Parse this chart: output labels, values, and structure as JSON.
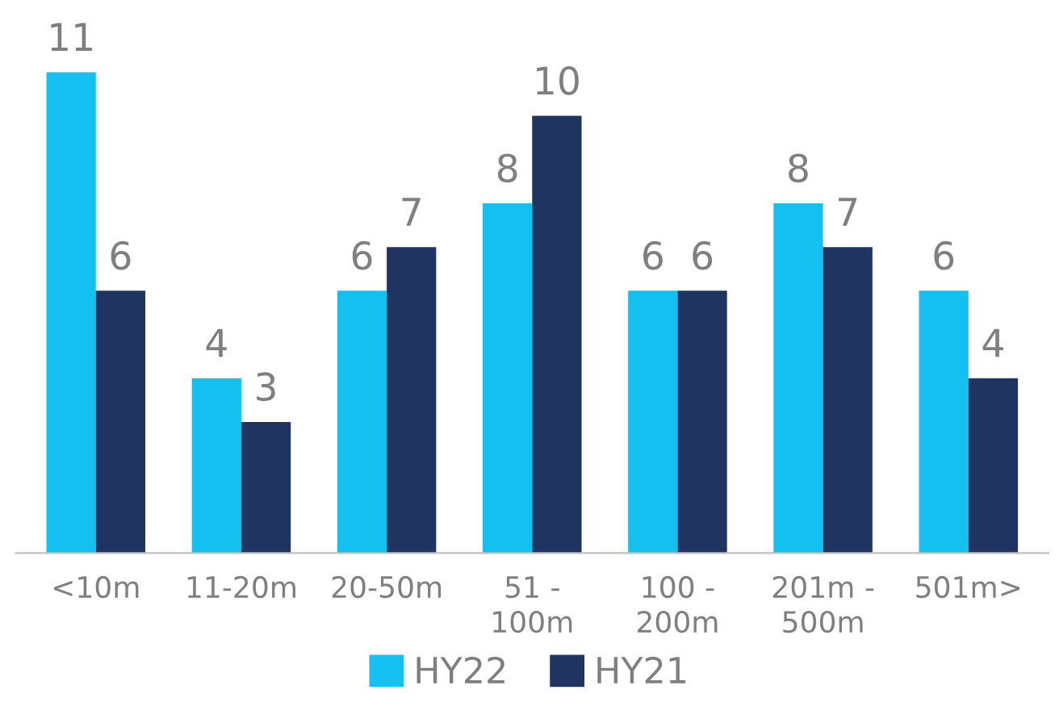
{
  "chart_data": {
    "type": "bar",
    "categories": [
      "<10m",
      "11-20m",
      "20-50m",
      "51 -\n100m",
      "100 -\n200m",
      "201m -\n500m",
      "501m>"
    ],
    "series": [
      {
        "name": "HY22",
        "color": "#13c0f0",
        "values": [
          11,
          4,
          6,
          8,
          6,
          8,
          6
        ]
      },
      {
        "name": "HY21",
        "color": "#1f3461",
        "values": [
          6,
          3,
          7,
          10,
          6,
          7,
          4
        ]
      }
    ],
    "data_labels": true,
    "legend": "bottom",
    "grid": false
  }
}
